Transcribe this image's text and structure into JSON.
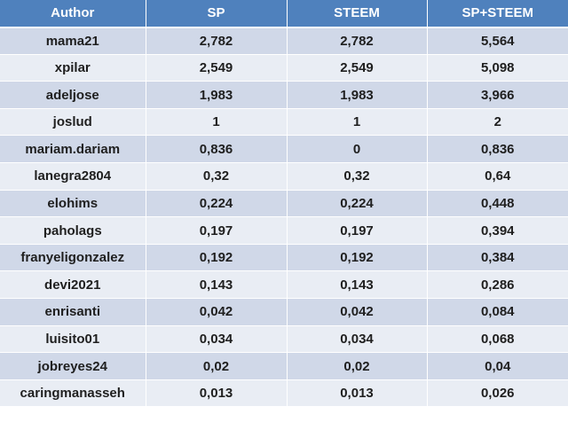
{
  "table": {
    "headers": [
      "Author",
      "SP",
      "STEEM",
      "SP+STEEM"
    ],
    "rows": [
      [
        "mama21",
        "2,782",
        "2,782",
        "5,564"
      ],
      [
        "xpilar",
        "2,549",
        "2,549",
        "5,098"
      ],
      [
        "adeljose",
        "1,983",
        "1,983",
        "3,966"
      ],
      [
        "joslud",
        "1",
        "1",
        "2"
      ],
      [
        "mariam.dariam",
        "0,836",
        "0",
        "0,836"
      ],
      [
        "lanegra2804",
        "0,32",
        "0,32",
        "0,64"
      ],
      [
        "elohims",
        "0,224",
        "0,224",
        "0,448"
      ],
      [
        "paholags",
        "0,197",
        "0,197",
        "0,394"
      ],
      [
        "franyeligonzalez",
        "0,192",
        "0,192",
        "0,384"
      ],
      [
        "devi2021",
        "0,143",
        "0,143",
        "0,286"
      ],
      [
        "enrisanti",
        "0,042",
        "0,042",
        "0,084"
      ],
      [
        "luisito01",
        "0,034",
        "0,034",
        "0,068"
      ],
      [
        "jobreyes24",
        "0,02",
        "0,02",
        "0,04"
      ],
      [
        "caringmanasseh",
        "0,013",
        "0,013",
        "0,026"
      ]
    ]
  },
  "colors": {
    "header_bg": "#4f81bd",
    "row_odd_bg": "#d0d8e8",
    "row_even_bg": "#e9edf4"
  }
}
